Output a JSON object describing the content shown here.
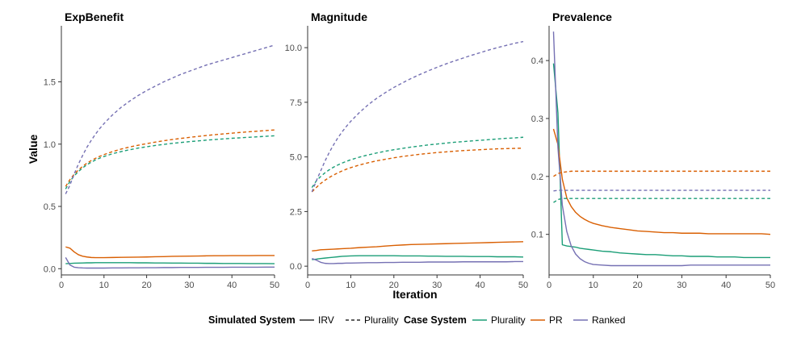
{
  "chart_data": {
    "type": "line",
    "x": [
      1,
      2,
      3,
      4,
      5,
      6,
      7,
      8,
      9,
      10,
      12,
      14,
      16,
      18,
      20,
      22,
      24,
      26,
      28,
      30,
      32,
      34,
      36,
      38,
      40,
      42,
      44,
      46,
      48,
      50
    ],
    "xlabel": "Iteration",
    "ylabel": "Value",
    "xlim": [
      0,
      50
    ],
    "xticks": [
      0,
      10,
      20,
      30,
      40,
      50
    ],
    "legend": {
      "placement": "bottom",
      "groups": [
        {
          "title": "Simulated System",
          "entries": [
            {
              "label": "IRV",
              "dash": "solid"
            },
            {
              "label": "Plurality",
              "dash": "dashed"
            }
          ]
        },
        {
          "title": "Case System",
          "entries": [
            {
              "label": "Plurality",
              "color": "#1b9e77"
            },
            {
              "label": "PR",
              "color": "#d95f02"
            },
            {
              "label": "Ranked",
              "color": "#7570b3"
            }
          ]
        }
      ]
    },
    "panels": [
      {
        "title": "ExpBenefit",
        "ylim": [
          -0.05,
          1.95
        ],
        "yticks": [
          0.0,
          0.5,
          1.0,
          1.5
        ],
        "ytick_labels": [
          "0.0",
          "0.5",
          "1.0",
          "1.5"
        ],
        "series": [
          {
            "sim": "IRV",
            "case": "Plurality",
            "color": "#1b9e77",
            "dash": "solid",
            "values": [
              0.04,
              0.042,
              0.044,
              0.045,
              0.046,
              0.047,
              0.047,
              0.048,
              0.048,
              0.048,
              0.048,
              0.048,
              0.048,
              0.047,
              0.047,
              0.046,
              0.046,
              0.045,
              0.045,
              0.044,
              0.044,
              0.043,
              0.043,
              0.042,
              0.042,
              0.042,
              0.041,
              0.041,
              0.041,
              0.04
            ]
          },
          {
            "sim": "IRV",
            "case": "PR",
            "color": "#d95f02",
            "dash": "solid",
            "values": [
              0.175,
              0.165,
              0.135,
              0.112,
              0.1,
              0.094,
              0.09,
              0.089,
              0.089,
              0.089,
              0.09,
              0.091,
              0.092,
              0.093,
              0.094,
              0.096,
              0.097,
              0.099,
              0.1,
              0.101,
              0.102,
              0.103,
              0.104,
              0.104,
              0.105,
              0.105,
              0.105,
              0.106,
              0.106,
              0.106
            ]
          },
          {
            "sim": "IRV",
            "case": "Ranked",
            "color": "#7570b3",
            "dash": "solid",
            "values": [
              0.09,
              0.03,
              0.012,
              0.008,
              0.006,
              0.005,
              0.005,
              0.005,
              0.005,
              0.005,
              0.006,
              0.006,
              0.007,
              0.007,
              0.008,
              0.008,
              0.009,
              0.009,
              0.01,
              0.01,
              0.01,
              0.011,
              0.011,
              0.011,
              0.012,
              0.012,
              0.012,
              0.012,
              0.013,
              0.013
            ]
          },
          {
            "sim": "Plurality",
            "case": "Plurality",
            "color": "#1b9e77",
            "dash": "dashed",
            "values": [
              0.64,
              0.7,
              0.745,
              0.78,
              0.81,
              0.835,
              0.855,
              0.873,
              0.888,
              0.901,
              0.923,
              0.94,
              0.955,
              0.968,
              0.979,
              0.989,
              0.998,
              1.006,
              1.013,
              1.02,
              1.026,
              1.032,
              1.037,
              1.042,
              1.047,
              1.051,
              1.055,
              1.059,
              1.063,
              1.067
            ]
          },
          {
            "sim": "Plurality",
            "case": "PR",
            "color": "#d95f02",
            "dash": "dashed",
            "values": [
              0.66,
              0.715,
              0.758,
              0.793,
              0.822,
              0.847,
              0.868,
              0.886,
              0.902,
              0.916,
              0.94,
              0.96,
              0.977,
              0.991,
              1.004,
              1.016,
              1.027,
              1.037,
              1.046,
              1.054,
              1.062,
              1.069,
              1.076,
              1.082,
              1.088,
              1.094,
              1.099,
              1.104,
              1.109,
              1.114
            ]
          },
          {
            "sim": "Plurality",
            "case": "Ranked",
            "color": "#7570b3",
            "dash": "dashed",
            "values": [
              0.6,
              0.67,
              0.76,
              0.84,
              0.91,
              0.975,
              1.03,
              1.08,
              1.125,
              1.165,
              1.235,
              1.295,
              1.345,
              1.39,
              1.43,
              1.465,
              1.5,
              1.53,
              1.56,
              1.585,
              1.61,
              1.635,
              1.655,
              1.675,
              1.695,
              1.715,
              1.735,
              1.755,
              1.775,
              1.795
            ]
          }
        ]
      },
      {
        "title": "Magnitude",
        "ylim": [
          -0.4,
          11.0
        ],
        "yticks": [
          0.0,
          2.5,
          5.0,
          7.5,
          10.0
        ],
        "ytick_labels": [
          "0.0",
          "2.5",
          "5.0",
          "7.5",
          "10.0"
        ],
        "series": [
          {
            "sim": "IRV",
            "case": "Plurality",
            "color": "#1b9e77",
            "dash": "solid",
            "values": [
              0.3,
              0.32,
              0.35,
              0.37,
              0.39,
              0.41,
              0.43,
              0.45,
              0.46,
              0.47,
              0.48,
              0.48,
              0.48,
              0.48,
              0.48,
              0.47,
              0.47,
              0.47,
              0.46,
              0.46,
              0.45,
              0.45,
              0.45,
              0.44,
              0.44,
              0.44,
              0.43,
              0.43,
              0.43,
              0.42
            ]
          },
          {
            "sim": "IRV",
            "case": "PR",
            "color": "#d95f02",
            "dash": "solid",
            "values": [
              0.7,
              0.72,
              0.75,
              0.76,
              0.77,
              0.78,
              0.79,
              0.8,
              0.81,
              0.82,
              0.85,
              0.87,
              0.89,
              0.92,
              0.95,
              0.97,
              0.99,
              1.0,
              1.01,
              1.02,
              1.03,
              1.04,
              1.05,
              1.06,
              1.07,
              1.08,
              1.09,
              1.1,
              1.11,
              1.12
            ]
          },
          {
            "sim": "IRV",
            "case": "Ranked",
            "color": "#7570b3",
            "dash": "solid",
            "values": [
              0.35,
              0.28,
              0.18,
              0.13,
              0.12,
              0.12,
              0.13,
              0.13,
              0.14,
              0.14,
              0.15,
              0.16,
              0.16,
              0.17,
              0.17,
              0.18,
              0.18,
              0.18,
              0.19,
              0.19,
              0.19,
              0.19,
              0.2,
              0.2,
              0.2,
              0.2,
              0.2,
              0.2,
              0.21,
              0.21
            ]
          },
          {
            "sim": "Plurality",
            "case": "Plurality",
            "color": "#1b9e77",
            "dash": "dashed",
            "values": [
              3.6,
              3.9,
              4.1,
              4.27,
              4.41,
              4.53,
              4.63,
              4.72,
              4.8,
              4.87,
              4.99,
              5.09,
              5.18,
              5.26,
              5.33,
              5.39,
              5.45,
              5.5,
              5.55,
              5.59,
              5.63,
              5.67,
              5.7,
              5.73,
              5.76,
              5.79,
              5.82,
              5.85,
              5.87,
              5.9
            ]
          },
          {
            "sim": "Plurality",
            "case": "PR",
            "color": "#d95f02",
            "dash": "dashed",
            "values": [
              3.4,
              3.6,
              3.78,
              3.93,
              4.06,
              4.17,
              4.27,
              4.36,
              4.44,
              4.51,
              4.63,
              4.73,
              4.82,
              4.89,
              4.96,
              5.02,
              5.07,
              5.12,
              5.16,
              5.2,
              5.23,
              5.26,
              5.29,
              5.31,
              5.33,
              5.35,
              5.37,
              5.38,
              5.39,
              5.4
            ]
          },
          {
            "sim": "Plurality",
            "case": "Ranked",
            "color": "#7570b3",
            "dash": "dashed",
            "values": [
              3.4,
              3.9,
              4.35,
              4.8,
              5.2,
              5.55,
              5.87,
              6.15,
              6.4,
              6.63,
              7.03,
              7.38,
              7.68,
              7.94,
              8.18,
              8.39,
              8.59,
              8.77,
              8.94,
              9.1,
              9.25,
              9.39,
              9.52,
              9.65,
              9.77,
              9.89,
              10.0,
              10.1,
              10.2,
              10.28
            ]
          }
        ]
      },
      {
        "title": "Prevalence",
        "ylim": [
          0.03,
          0.46
        ],
        "yticks": [
          0.1,
          0.2,
          0.3,
          0.4
        ],
        "ytick_labels": [
          "0.1",
          "0.2",
          "0.3",
          "0.4"
        ],
        "series": [
          {
            "sim": "IRV",
            "case": "Plurality",
            "color": "#1b9e77",
            "dash": "solid",
            "values": [
              0.395,
              0.31,
              0.082,
              0.08,
              0.079,
              0.078,
              0.076,
              0.075,
              0.074,
              0.073,
              0.071,
              0.07,
              0.068,
              0.067,
              0.066,
              0.065,
              0.065,
              0.064,
              0.063,
              0.063,
              0.062,
              0.062,
              0.062,
              0.061,
              0.061,
              0.061,
              0.06,
              0.06,
              0.06,
              0.06
            ]
          },
          {
            "sim": "IRV",
            "case": "PR",
            "color": "#d95f02",
            "dash": "solid",
            "values": [
              0.282,
              0.255,
              0.195,
              0.163,
              0.148,
              0.138,
              0.131,
              0.126,
              0.122,
              0.119,
              0.115,
              0.112,
              0.11,
              0.108,
              0.106,
              0.105,
              0.104,
              0.103,
              0.103,
              0.102,
              0.102,
              0.102,
              0.101,
              0.101,
              0.101,
              0.101,
              0.101,
              0.101,
              0.101,
              0.1
            ]
          },
          {
            "sim": "IRV",
            "case": "Ranked",
            "color": "#7570b3",
            "dash": "solid",
            "values": [
              0.45,
              0.25,
              0.15,
              0.105,
              0.08,
              0.066,
              0.058,
              0.053,
              0.05,
              0.048,
              0.047,
              0.046,
              0.046,
              0.046,
              0.046,
              0.046,
              0.046,
              0.046,
              0.046,
              0.046,
              0.047,
              0.047,
              0.047,
              0.047,
              0.047,
              0.047,
              0.047,
              0.047,
              0.047,
              0.047
            ]
          },
          {
            "sim": "Plurality",
            "case": "Plurality",
            "color": "#1b9e77",
            "dash": "dashed",
            "values": [
              0.155,
              0.16,
              0.162,
              0.162,
              0.162,
              0.162,
              0.162,
              0.162,
              0.162,
              0.162,
              0.162,
              0.162,
              0.162,
              0.162,
              0.162,
              0.162,
              0.162,
              0.162,
              0.162,
              0.162,
              0.162,
              0.162,
              0.162,
              0.162,
              0.162,
              0.162,
              0.162,
              0.162,
              0.162,
              0.162
            ]
          },
          {
            "sim": "Plurality",
            "case": "PR",
            "color": "#d95f02",
            "dash": "dashed",
            "values": [
              0.2,
              0.205,
              0.207,
              0.208,
              0.209,
              0.209,
              0.209,
              0.209,
              0.209,
              0.209,
              0.209,
              0.209,
              0.209,
              0.209,
              0.209,
              0.209,
              0.209,
              0.209,
              0.209,
              0.209,
              0.209,
              0.209,
              0.209,
              0.209,
              0.209,
              0.209,
              0.209,
              0.209,
              0.209,
              0.209
            ]
          },
          {
            "sim": "Plurality",
            "case": "Ranked",
            "color": "#7570b3",
            "dash": "dashed",
            "values": [
              0.175,
              0.176,
              0.176,
              0.176,
              0.176,
              0.176,
              0.176,
              0.176,
              0.176,
              0.176,
              0.176,
              0.176,
              0.176,
              0.176,
              0.176,
              0.176,
              0.176,
              0.176,
              0.176,
              0.176,
              0.176,
              0.176,
              0.176,
              0.176,
              0.176,
              0.176,
              0.176,
              0.176,
              0.176,
              0.176
            ]
          }
        ]
      }
    ]
  }
}
